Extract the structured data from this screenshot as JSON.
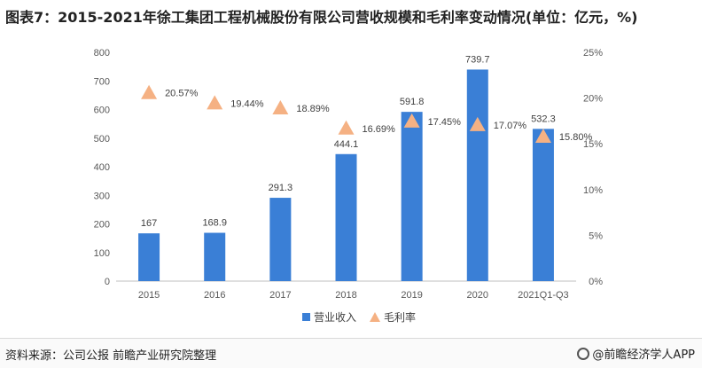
{
  "header": {
    "title": "图表7：2015-2021年徐工集团工程机械股份有限公司营收规模和毛利率变动情况(单位：亿元，%)"
  },
  "footer": {
    "source": "资料来源：公司公报 前瞻产业研究院整理",
    "brand": "@前瞻经济学人APP"
  },
  "chart_data": {
    "type": "bar",
    "categories": [
      "2015",
      "2016",
      "2017",
      "2018",
      "2019",
      "2020",
      "2021Q1-Q3"
    ],
    "series": [
      {
        "name": "营业收入",
        "type": "bar",
        "axis": "left",
        "values": [
          167,
          168.9,
          291.3,
          444.1,
          591.8,
          739.7,
          532.3
        ],
        "labels": [
          "167",
          "168.9",
          "291.3",
          "444.1",
          "591.8",
          "739.7",
          "532.3"
        ],
        "color": "#3a7fd6"
      },
      {
        "name": "毛利率",
        "type": "marker",
        "marker": "triangle",
        "axis": "right",
        "values": [
          20.57,
          19.44,
          18.89,
          16.69,
          17.45,
          17.07,
          15.8
        ],
        "labels": [
          "20.57%",
          "19.44%",
          "18.89%",
          "16.69%",
          "17.45%",
          "17.07%",
          "15.80%"
        ],
        "color": "#f5b183"
      }
    ],
    "y_left": {
      "ylim": [
        0,
        800
      ],
      "ticks": [
        "0",
        "100",
        "200",
        "300",
        "400",
        "500",
        "600",
        "700",
        "800"
      ]
    },
    "y_right": {
      "ylim": [
        0,
        25
      ],
      "ticks": [
        "0%",
        "5%",
        "10%",
        "15%",
        "20%",
        "25%"
      ]
    },
    "legend": {
      "position": "bottom"
    },
    "grid": false
  }
}
